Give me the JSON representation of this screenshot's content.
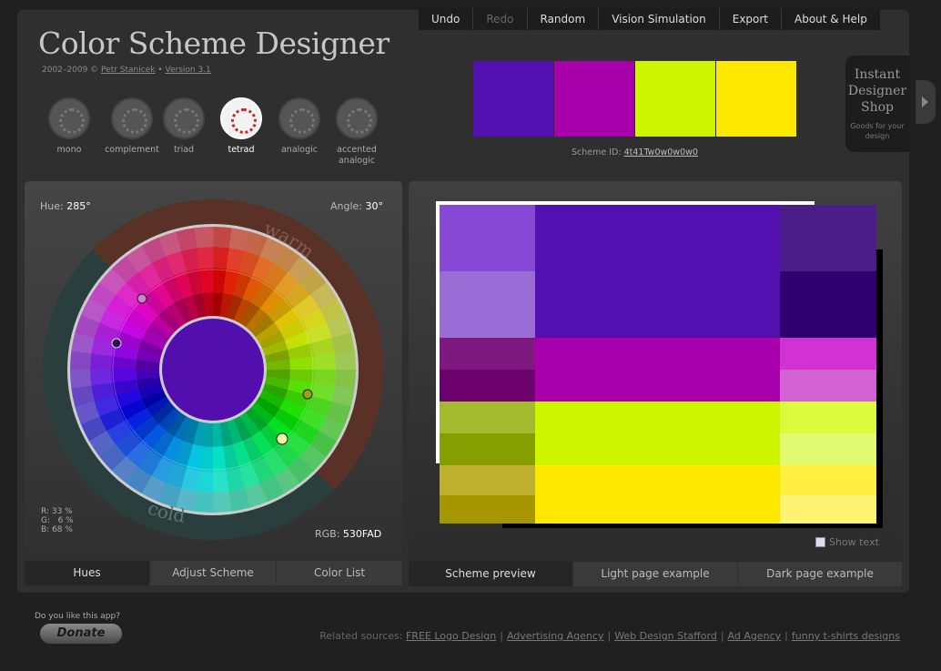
{
  "menu": [
    "Undo",
    "Redo",
    "Random",
    "Vision Simulation",
    "Export",
    "About & Help"
  ],
  "menu_disabled": [
    false,
    true,
    false,
    false,
    false,
    false
  ],
  "app_title": "Color Scheme Designer",
  "credit": {
    "years": "2002–2009 ©",
    "author": "Petr Stanicek",
    "sep": "•",
    "version": "Version 3.1"
  },
  "scheme_types": [
    {
      "label": "mono",
      "active": false
    },
    {
      "label": "complement",
      "active": false
    },
    {
      "label": "triad",
      "active": false
    },
    {
      "label": "tetrad",
      "active": true
    },
    {
      "label": "analogic",
      "active": false
    },
    {
      "label": "accented analogic",
      "active": false
    }
  ],
  "swatches": [
    "#5210B0",
    "#A800AA",
    "#CEF500",
    "#FFE800"
  ],
  "scheme_id": {
    "label": "Scheme ID:",
    "value": "4t41Tw0w0w0w0"
  },
  "shop": {
    "title": "Instant Designer Shop",
    "subtitle": "Goods for your design"
  },
  "wheel": {
    "hue_label": "Hue:",
    "hue_value": "285°",
    "angle_label": "Angle:",
    "angle_value": "30°",
    "warm": "warm",
    "cold": "cold",
    "center_color": "#530FAD",
    "rgb_pct": "R: 33 %\nG:   6 %\nB: 68 %",
    "rgb_label": "RGB:",
    "rgb_value": "530FAD"
  },
  "left_tabs": [
    {
      "label": "Hues",
      "active": true
    },
    {
      "label": "Adjust Scheme",
      "active": false
    },
    {
      "label": "Color List",
      "active": false
    }
  ],
  "right_tabs": [
    {
      "label": "Scheme preview",
      "active": true
    },
    {
      "label": "Light page example",
      "active": false
    },
    {
      "label": "Dark page example",
      "active": false
    }
  ],
  "preview_rows": [
    {
      "left": [
        "#8549D6",
        "#9A6CD6"
      ],
      "main": "#5210B0",
      "right": [
        "#4A1E88",
        "#2E016E"
      ]
    },
    {
      "left": [
        "#7E1A7F",
        "#6C006D"
      ],
      "main": "#A800AA",
      "right": [
        "#D232D4",
        "#D262D4"
      ]
    },
    {
      "left": [
        "#A3BA2E",
        "#859F00"
      ],
      "main": "#CEF500",
      "right": [
        "#DBFA3D",
        "#E1FA71"
      ]
    },
    {
      "left": [
        "#C0B02F",
        "#A69600"
      ],
      "main": "#FFE800",
      "right": [
        "#FFEE40",
        "#FFF373"
      ]
    }
  ],
  "show_text": "Show text",
  "footer": {
    "like": "Do you like this app?",
    "donate": "Donate",
    "related_label": "Related sources:",
    "links": [
      "FREE Logo Design",
      "Advertising Agency",
      "Web Design Stafford",
      "Ad Agency",
      "funny t-shirts designs"
    ]
  }
}
